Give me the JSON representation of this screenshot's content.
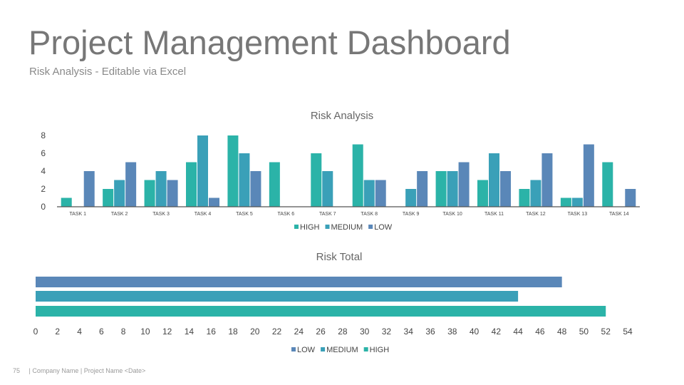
{
  "page": {
    "title": "Project Management Dashboard",
    "subtitle": "Risk Analysis - Editable via Excel"
  },
  "colors": {
    "high": "#2bb3a8",
    "medium": "#3aa0b8",
    "low": "#5a87b8",
    "axis": "#555555"
  },
  "chart_data": [
    {
      "type": "bar",
      "title": "Risk Analysis",
      "categories": [
        "TASK 1",
        "TASK 2",
        "TASK 3",
        "TASK 4",
        "TASK 5",
        "TASK 6",
        "TASK 7",
        "TASK 8",
        "TASK 9",
        "TASK 10",
        "TASK 11",
        "TASK 12",
        "TASK 13",
        "TASK 14"
      ],
      "series": [
        {
          "name": "HIGH",
          "values": [
            1,
            2,
            3,
            5,
            8,
            5,
            6,
            7,
            0,
            4,
            3,
            2,
            1,
            5
          ]
        },
        {
          "name": "MEDIUM",
          "values": [
            0,
            3,
            4,
            8,
            6,
            0,
            4,
            3,
            2,
            4,
            6,
            3,
            1,
            0
          ]
        },
        {
          "name": "LOW",
          "values": [
            4,
            5,
            3,
            1,
            4,
            0,
            0,
            3,
            4,
            5,
            4,
            6,
            7,
            2
          ]
        }
      ],
      "ylim": [
        0,
        8
      ],
      "yticks": [
        0,
        2,
        4,
        6,
        8
      ],
      "legend": "bottom",
      "grid": false
    },
    {
      "type": "bar",
      "orientation": "horizontal",
      "title": "Risk Total",
      "series": [
        {
          "name": "LOW",
          "value": 48
        },
        {
          "name": "MEDIUM",
          "value": 44
        },
        {
          "name": "HIGH",
          "value": 52
        }
      ],
      "xlim": [
        0,
        54
      ],
      "xticks": [
        0,
        2,
        4,
        6,
        8,
        10,
        12,
        14,
        16,
        18,
        20,
        22,
        24,
        26,
        28,
        30,
        32,
        34,
        36,
        38,
        40,
        42,
        44,
        46,
        48,
        50,
        52,
        54
      ],
      "legend": "bottom",
      "grid": false
    }
  ],
  "footer": {
    "page_number": "75",
    "text": "| Company Name | Project Name <Date>"
  }
}
